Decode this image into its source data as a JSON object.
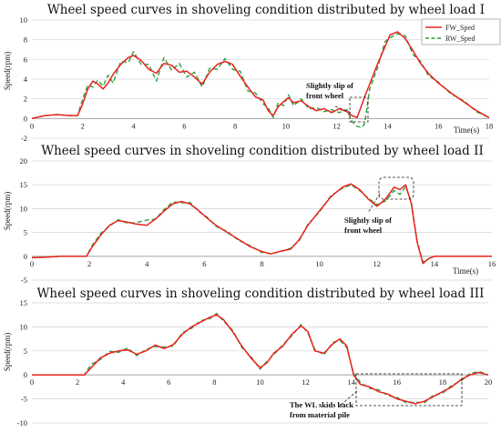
{
  "chart_data": [
    {
      "type": "line",
      "title": "Wheel speed curves in shoveling condition distributed by wheel load I",
      "ylabel": "Speed(rpm)",
      "xlabel": "Time(s)",
      "xlim": [
        0,
        18
      ],
      "ylim": [
        -2,
        10
      ],
      "xticks": [
        0,
        2,
        4,
        6,
        8,
        10,
        12,
        14,
        16,
        18
      ],
      "yticks": [
        -2,
        0,
        2,
        4,
        6,
        8,
        10
      ],
      "legend": {
        "placement": "top-right",
        "entries": [
          {
            "label": "FW_Sped",
            "color": "#e8231d",
            "style": "solid"
          },
          {
            "label": "RW_Sped",
            "color": "#2e9e3e",
            "style": "dashed"
          }
        ]
      },
      "series": [
        {
          "name": "FW_Sped",
          "color": "#e8231d",
          "style": "solid",
          "x": [
            0,
            0.5,
            1,
            1.5,
            1.8,
            2,
            2.2,
            2.4,
            2.6,
            2.8,
            3,
            3.2,
            3.5,
            3.8,
            4,
            4.3,
            4.6,
            4.9,
            5.2,
            5.5,
            5.8,
            6.1,
            6.4,
            6.7,
            7,
            7.3,
            7.6,
            7.9,
            8.2,
            8.5,
            8.8,
            9.1,
            9.3,
            9.5,
            9.7,
            9.9,
            10.1,
            10.3,
            10.6,
            10.9,
            11.2,
            11.5,
            11.8,
            12.1,
            12.4,
            12.6,
            12.8,
            13.0,
            13.1,
            13.3,
            13.6,
            13.9,
            14.1,
            14.4,
            14.7,
            15.0,
            15.3,
            15.6,
            16,
            16.5,
            17,
            17.5,
            18
          ],
          "y": [
            0,
            0.3,
            0.4,
            0.3,
            0.3,
            1.5,
            3,
            3.8,
            3.5,
            3,
            3.6,
            4.5,
            5.5,
            6.2,
            6.4,
            5.9,
            5,
            4.6,
            5.6,
            5.4,
            4.7,
            4.8,
            4.2,
            3.5,
            4.7,
            5.5,
            5.8,
            5.5,
            4.3,
            3.2,
            2.2,
            1.9,
            0.8,
            0.3,
            1.2,
            1.7,
            2.1,
            1.6,
            1.8,
            1.2,
            0.8,
            1.0,
            0.6,
            1.0,
            0.7,
            0.3,
            0.1,
            1.5,
            2.2,
            3.5,
            5.5,
            7.3,
            8.5,
            8.8,
            8.1,
            6.9,
            5.6,
            4.6,
            3.6,
            2.6,
            1.7,
            0.8,
            0.1
          ]
        },
        {
          "name": "RW_Sped",
          "color": "#2e9e3e",
          "style": "dashed",
          "x": [
            0,
            0.5,
            1,
            1.5,
            1.8,
            2,
            2.2,
            2.4,
            2.6,
            2.8,
            3,
            3.2,
            3.5,
            3.8,
            4,
            4.3,
            4.6,
            4.9,
            5.2,
            5.5,
            5.8,
            6.1,
            6.4,
            6.7,
            7,
            7.3,
            7.6,
            7.9,
            8.2,
            8.5,
            8.8,
            9.1,
            9.3,
            9.5,
            9.7,
            9.9,
            10.1,
            10.3,
            10.6,
            10.9,
            11.2,
            11.5,
            11.8,
            12.1,
            12.4,
            12.6,
            12.8,
            13.0,
            13.1,
            13.3,
            13.6,
            13.9,
            14.1,
            14.4,
            14.7,
            15.0,
            15.3,
            15.6,
            16,
            16.5,
            17,
            17.5,
            18
          ],
          "y": [
            0,
            0.3,
            0.4,
            0.3,
            0.3,
            2,
            3.4,
            3.2,
            3.9,
            3.3,
            4.4,
            3.6,
            5.8,
            5.7,
            6.8,
            5.5,
            5.5,
            3.8,
            6.2,
            4.9,
            5.6,
            4.2,
            4.7,
            3.2,
            5.1,
            5.0,
            6.1,
            5.0,
            4.8,
            2.8,
            2.6,
            1.5,
            1.1,
            0.1,
            1.6,
            1.3,
            2.4,
            1.3,
            2.0,
            1.0,
            1.1,
            0.7,
            0.9,
            0.6,
            0.9,
            -0.3,
            -0.8,
            -0.9,
            -0.5,
            3.0,
            5.1,
            7.8,
            8.2,
            8.6,
            8.4,
            6.5,
            5.8,
            4.4,
            3.7,
            2.5,
            1.8,
            0.7,
            0.1
          ]
        }
      ],
      "annotations": [
        {
          "text": "Slightly slip of front wheel"
        }
      ]
    },
    {
      "type": "line",
      "title": "Wheel speed curves in shoveling condition distributed by wheel load II",
      "ylabel": "Speed(rpm)",
      "xlabel": "Time(s)",
      "xlim": [
        0,
        16
      ],
      "ylim": [
        -5,
        20
      ],
      "xticks": [
        0,
        2,
        4,
        6,
        8,
        10,
        12,
        14,
        16
      ],
      "yticks": [
        -5,
        0,
        5,
        10,
        15,
        20
      ],
      "series": [
        {
          "name": "FW_Sped",
          "color": "#e8231d",
          "style": "solid",
          "x": [
            0,
            0.5,
            1,
            1.5,
            1.9,
            2.1,
            2.4,
            2.7,
            3,
            3.3,
            3.6,
            4,
            4.3,
            4.6,
            4.9,
            5.2,
            5.5,
            5.8,
            6.1,
            6.4,
            6.8,
            7.2,
            7.6,
            8,
            8.3,
            8.6,
            9,
            9.3,
            9.6,
            10,
            10.4,
            10.8,
            11.1,
            11.4,
            11.7,
            12,
            12.3,
            12.6,
            12.8,
            13,
            13.2,
            13.4,
            13.6,
            13.8,
            14,
            14.5,
            15,
            15.5,
            16
          ],
          "y": [
            -0.3,
            -0.2,
            0,
            0,
            0,
            2,
            4.5,
            6.5,
            7.5,
            7.2,
            6.8,
            6.5,
            7.8,
            9.5,
            11,
            11.5,
            11,
            9.6,
            8,
            6.5,
            5,
            3.5,
            2,
            1,
            0.5,
            1,
            1.5,
            3.5,
            6.5,
            9.5,
            12.5,
            14.5,
            15.2,
            14,
            12,
            10.5,
            12,
            14.5,
            14,
            15,
            11,
            3,
            -1.5,
            -0.5,
            0,
            0,
            0,
            0,
            0
          ]
        },
        {
          "name": "RW_Sped",
          "color": "#2e9e3e",
          "style": "dashed",
          "x": [
            0,
            0.5,
            1,
            1.5,
            1.9,
            2.1,
            2.4,
            2.7,
            3,
            3.3,
            3.6,
            4,
            4.3,
            4.6,
            4.9,
            5.2,
            5.5,
            5.8,
            6.1,
            6.4,
            6.8,
            7.2,
            7.6,
            8,
            8.3,
            8.6,
            9,
            9.3,
            9.6,
            10,
            10.4,
            10.8,
            11.1,
            11.4,
            11.7,
            12,
            12.3,
            12.6,
            12.8,
            13,
            13.2,
            13.4,
            13.6,
            13.8,
            14,
            14.5,
            15,
            15.5,
            16
          ],
          "y": [
            -0.3,
            -0.2,
            0,
            0,
            0,
            2.3,
            4.8,
            6.3,
            7.7,
            7.0,
            7.0,
            7.6,
            7.8,
            9.8,
            11.4,
            11.2,
            11.3,
            9.4,
            8.2,
            6.3,
            5.2,
            3.3,
            2.2,
            0.8,
            0.6,
            0.9,
            1.7,
            3.3,
            6.7,
            9.3,
            12.7,
            14.3,
            15.0,
            13.8,
            12.2,
            10.8,
            11.6,
            13.8,
            13.0,
            14.6,
            11.4,
            3.2,
            -1.2,
            -0.5,
            0,
            0,
            0,
            0,
            0
          ]
        }
      ],
      "annotations": [
        {
          "text": "Slightly slip of front wheel"
        }
      ]
    },
    {
      "type": "line",
      "title": "Wheel speed curves in shoveling condition distributed by wheel load III",
      "ylabel": "Speed(rpm)",
      "xlabel": "Time(s)",
      "xlim": [
        0,
        20
      ],
      "ylim": [
        -10,
        15
      ],
      "xticks": [
        0,
        2,
        4,
        6,
        8,
        10,
        12,
        14,
        16,
        18,
        20
      ],
      "yticks": [
        -10,
        -5,
        0,
        5,
        10,
        15
      ],
      "series": [
        {
          "name": "FW_Sped",
          "color": "#e8231d",
          "style": "solid",
          "x": [
            0,
            1,
            2,
            2.3,
            2.6,
            3,
            3.4,
            3.8,
            4.2,
            4.6,
            5,
            5.4,
            5.8,
            6.2,
            6.6,
            7,
            7.4,
            7.8,
            8.1,
            8.4,
            8.8,
            9.2,
            9.6,
            10,
            10.3,
            10.6,
            11,
            11.4,
            11.8,
            12.1,
            12.4,
            12.8,
            13.2,
            13.5,
            13.8,
            14.1,
            14.4,
            14.8,
            15.2,
            15.6,
            16,
            16.4,
            16.8,
            17.2,
            17.6,
            18,
            18.4,
            18.8,
            19.2,
            19.6,
            20
          ],
          "y": [
            0,
            0,
            0,
            0,
            1.5,
            3.5,
            4.5,
            5,
            5.2,
            4.3,
            5,
            6.2,
            5.5,
            6.3,
            8.5,
            10,
            11,
            12,
            12.5,
            11.5,
            9,
            6,
            3.5,
            1.5,
            2.5,
            4.5,
            6,
            8.5,
            10.2,
            9,
            5,
            4.5,
            6.5,
            7.5,
            6,
            0,
            -2,
            -2.5,
            -3.5,
            -4,
            -5,
            -5.5,
            -6,
            -5.5,
            -4.5,
            -3.5,
            -2.5,
            -1,
            0,
            0.5,
            0
          ]
        },
        {
          "name": "RW_Sped",
          "color": "#2e9e3e",
          "style": "dashed",
          "x": [
            0,
            1,
            2,
            2.3,
            2.6,
            3,
            3.4,
            3.8,
            4.2,
            4.6,
            5,
            5.4,
            5.8,
            6.2,
            6.6,
            7,
            7.4,
            7.8,
            8.1,
            8.4,
            8.8,
            9.2,
            9.6,
            10,
            10.3,
            10.6,
            11,
            11.4,
            11.8,
            12.1,
            12.4,
            12.8,
            13.2,
            13.5,
            13.8,
            14.1,
            14.4,
            14.8,
            15.2,
            15.6,
            16,
            16.4,
            16.8,
            17.2,
            17.6,
            18,
            18.4,
            18.8,
            19.2,
            19.6,
            20
          ],
          "y": [
            0,
            0,
            0,
            0,
            2.2,
            3.2,
            4.9,
            4.7,
            5.6,
            4.0,
            5.3,
            5.9,
            5.8,
            6.0,
            8.8,
            9.7,
            11.3,
            11.7,
            12.8,
            11.2,
            9.3,
            5.7,
            3.8,
            1.2,
            2.8,
            4.2,
            6.3,
            8.2,
            10.5,
            8.7,
            5.3,
            4.2,
            6.8,
            7.2,
            5.7,
            0.3,
            -1.6,
            -2.8,
            -3.1,
            -4.3,
            -4.7,
            -5.8,
            -5.7,
            -5.8,
            -4.2,
            -3.8,
            -2.2,
            -1.3,
            0.3,
            0.7,
            0
          ]
        }
      ],
      "annotations": [
        {
          "text": "The WL skids back from material pile"
        }
      ]
    }
  ]
}
